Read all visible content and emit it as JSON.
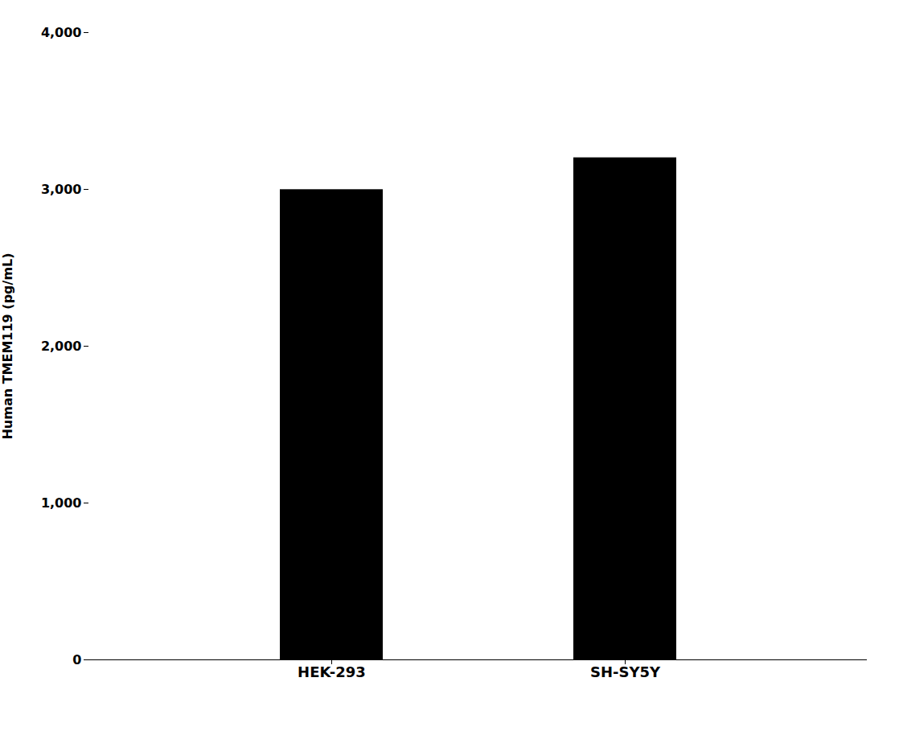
{
  "chart_data": {
    "type": "bar",
    "categories": [
      "HEK-293",
      "SH-SY5Y"
    ],
    "values": [
      2998.4,
      3201.6
    ],
    "color": "#000000",
    "ylabel": "Human TMEM119 (pg/mL)",
    "ylim": [
      0,
      4000
    ],
    "yticks": [
      0,
      {
        "value": 1000,
        "label": "1,000"
      },
      {
        "value": 2000,
        "label": "2,000"
      },
      {
        "value": 3000,
        "label": "3,000"
      },
      {
        "value": 4000,
        "label": "4,000"
      }
    ],
    "grid": false
  }
}
